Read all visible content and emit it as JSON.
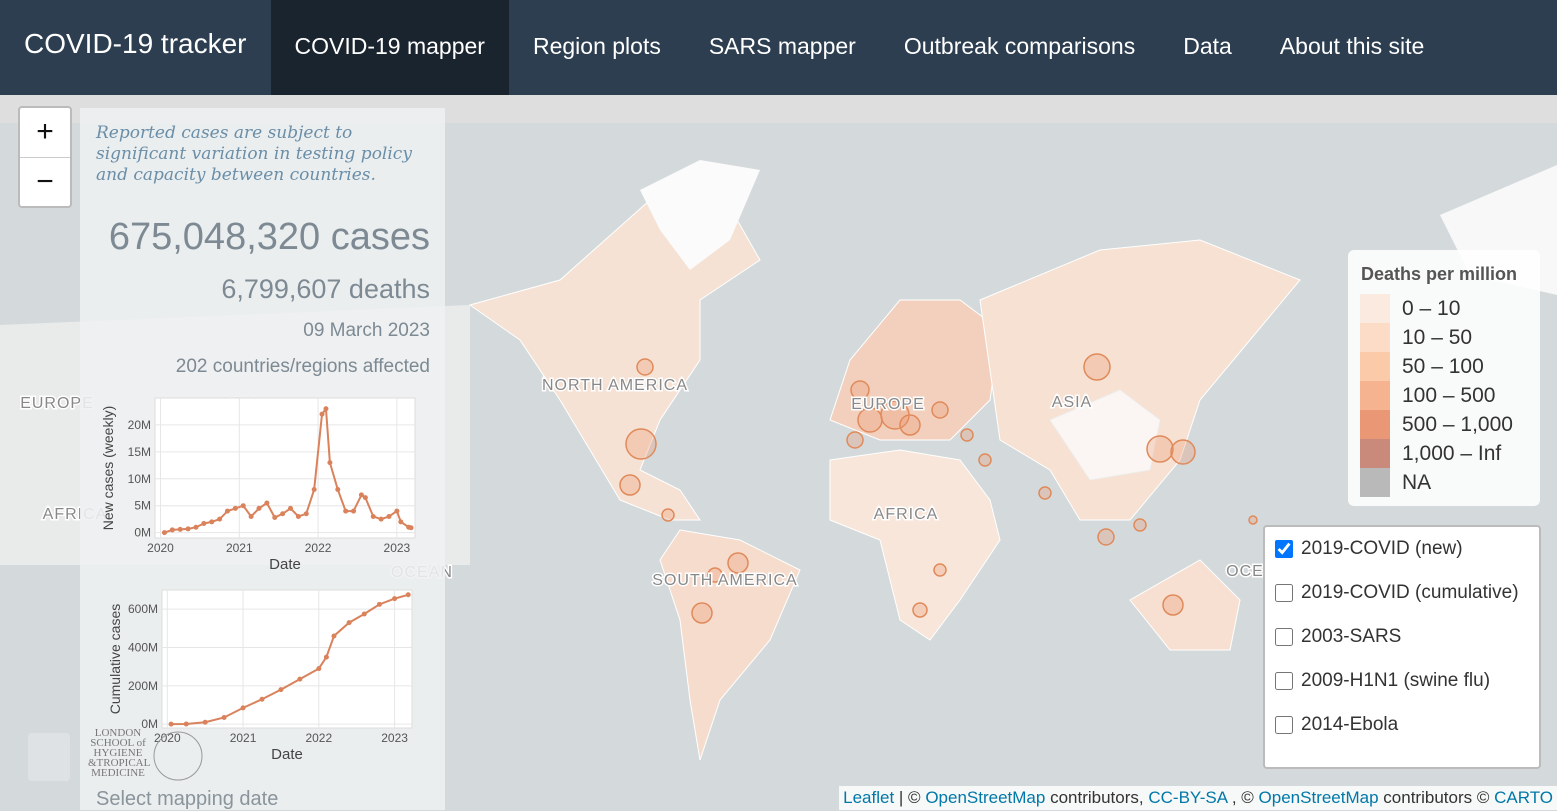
{
  "nav": {
    "brand": "COVID-19 tracker",
    "items": [
      "COVID-19 mapper",
      "Region plots",
      "SARS mapper",
      "Outbreak comparisons",
      "Data",
      "About this site"
    ],
    "active": 0
  },
  "zoom": [
    "+",
    "−"
  ],
  "panel": {
    "note": "Reported cases are subject to significant variation in testing policy and capacity between countries.",
    "cases": "675,048,320 cases",
    "deaths": "6,799,607 deaths",
    "date": "09 March 2023",
    "affected": "202 countries/regions affected",
    "logo": [
      "LONDON",
      "SCHOOL of",
      "HYGIENE",
      "&TROPICAL",
      "MEDICINE"
    ],
    "date_select": "Select mapping date"
  },
  "chart_data": [
    {
      "type": "line",
      "x_label": "Date",
      "y_label": "New cases (weekly)",
      "color": "#d9825b",
      "x": [
        2020.05,
        2020.15,
        2020.25,
        2020.35,
        2020.45,
        2020.55,
        2020.65,
        2020.75,
        2020.85,
        2020.95,
        2021.05,
        2021.15,
        2021.25,
        2021.35,
        2021.45,
        2021.55,
        2021.65,
        2021.75,
        2021.85,
        2021.95,
        2022.05,
        2022.1,
        2022.15,
        2022.25,
        2022.35,
        2022.45,
        2022.55,
        2022.6,
        2022.7,
        2022.8,
        2022.9,
        2023.0,
        2023.05,
        2023.15,
        2023.18
      ],
      "values": [
        0,
        0.5,
        0.6,
        0.7,
        1,
        1.7,
        2,
        2.5,
        4,
        4.5,
        5,
        3,
        4.5,
        5.5,
        2.8,
        3.5,
        4.5,
        3,
        3.5,
        8,
        22,
        23,
        13,
        8,
        4,
        4,
        7,
        6.5,
        3,
        2.5,
        3,
        4,
        2,
        1,
        0.9
      ],
      "xlim": [
        2019.93,
        2023.23
      ],
      "xticks": [
        2020,
        2021,
        2022,
        2023
      ],
      "ylim": [
        -1,
        25
      ],
      "yticks": [
        {
          "value": 0,
          "label": "0M"
        },
        {
          "value": 5,
          "label": "5M"
        },
        {
          "value": 10,
          "label": "10M"
        },
        {
          "value": 15,
          "label": "15M"
        },
        {
          "value": 20,
          "label": "20M"
        }
      ],
      "grid": true
    },
    {
      "type": "line",
      "x_label": "Date",
      "y_label": "Cumulative cases",
      "color": "#d9825b",
      "x": [
        2020.05,
        2020.25,
        2020.5,
        2020.75,
        2021.0,
        2021.25,
        2021.5,
        2021.75,
        2022.0,
        2022.1,
        2022.2,
        2022.4,
        2022.6,
        2022.8,
        2023.0,
        2023.18
      ],
      "values": [
        0,
        1,
        10,
        35,
        85,
        130,
        180,
        235,
        290,
        350,
        460,
        530,
        575,
        625,
        655,
        675
      ],
      "xlim": [
        2019.93,
        2023.23
      ],
      "xticks": [
        2020,
        2021,
        2022,
        2023
      ],
      "ylim": [
        -20,
        700
      ],
      "yticks": [
        {
          "value": 0,
          "label": "0M"
        },
        {
          "value": 200,
          "label": "200M"
        },
        {
          "value": 400,
          "label": "400M"
        },
        {
          "value": 600,
          "label": "600M"
        }
      ],
      "grid": true
    }
  ],
  "map": {
    "labels": [
      "NORTH AMERICA",
      "SOUTH AMERICA",
      "EUROPE",
      "AFRICA",
      "ASIA",
      "EUROPE",
      "ASIA",
      "AFRICA",
      "OCEAN",
      "OCE"
    ]
  },
  "legend": {
    "title": "Deaths per million",
    "items": [
      {
        "label": "0 – 10",
        "color": "#fbeadf"
      },
      {
        "label": "10 – 50",
        "color": "#fcdcc6"
      },
      {
        "label": "50 – 100",
        "color": "#fbcaa9"
      },
      {
        "label": "100 – 500",
        "color": "#f5b48f"
      },
      {
        "label": "500 – 1,000",
        "color": "#ea9776"
      },
      {
        "label": "1,000 – Inf",
        "color": "#c98a7b"
      },
      {
        "label": "NA",
        "color": "#b9b9b9"
      }
    ]
  },
  "layers": [
    {
      "label": "2019-COVID (new)",
      "checked": true
    },
    {
      "label": "2019-COVID (cumulative)",
      "checked": false
    },
    {
      "label": "2003-SARS",
      "checked": false
    },
    {
      "label": "2009-H1N1 (swine flu)",
      "checked": false
    },
    {
      "label": "2014-Ebola",
      "checked": false
    }
  ],
  "attribution": [
    {
      "text": "Leaflet",
      "link": true
    },
    {
      "text": "| ©",
      "link": false
    },
    {
      "text": "OpenStreetMap",
      "link": true
    },
    {
      "text": "contributors,",
      "link": false
    },
    {
      "text": "CC-BY-SA",
      "link": true
    },
    {
      "text": ", ©",
      "link": false
    },
    {
      "text": "OpenStreetMap",
      "link": true
    },
    {
      "text": "contributors ©",
      "link": false
    },
    {
      "text": "CARTO",
      "link": true
    }
  ]
}
